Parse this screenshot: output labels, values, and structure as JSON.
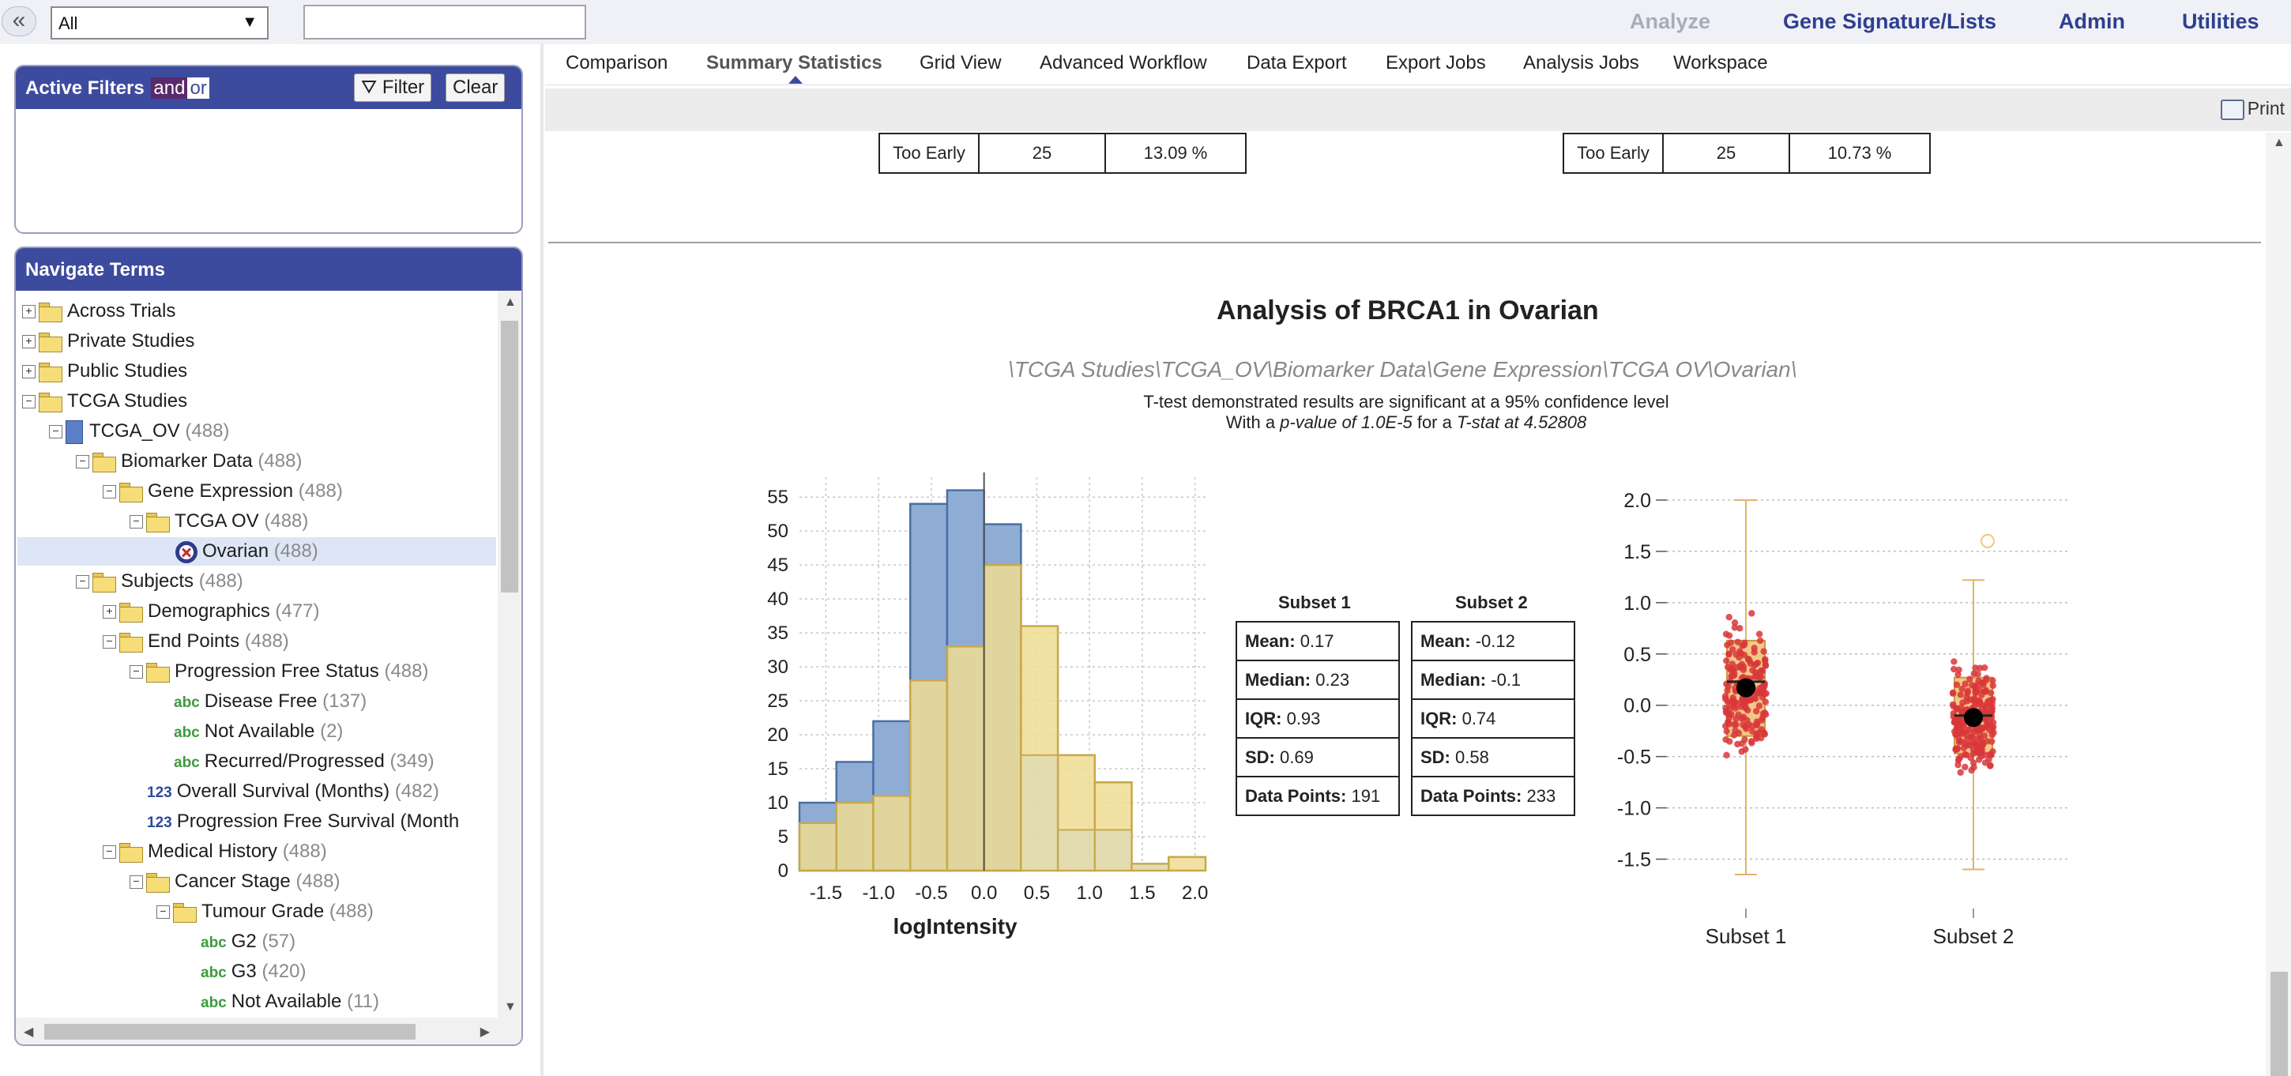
{
  "topbar": {
    "collapse": "«",
    "search_select": "All",
    "search_placeholder": "",
    "menu": [
      "Analyze",
      "Gene Signature/Lists",
      "Admin",
      "Utilities"
    ]
  },
  "filters": {
    "title": "Active Filters",
    "and": "and",
    "or": "or",
    "filter_btn": "Filter",
    "clear_btn": "Clear"
  },
  "navigate": {
    "title": "Navigate Terms",
    "items": [
      {
        "label": "Across Trials",
        "count": ""
      },
      {
        "label": "Private Studies",
        "count": ""
      },
      {
        "label": "Public Studies",
        "count": ""
      },
      {
        "label": "TCGA Studies",
        "count": ""
      },
      {
        "label": "TCGA_OV",
        "count": "(488)"
      },
      {
        "label": "Biomarker Data",
        "count": "(488)"
      },
      {
        "label": "Gene Expression",
        "count": "(488)"
      },
      {
        "label": "TCGA OV",
        "count": "(488)"
      },
      {
        "label": "Ovarian",
        "count": "(488)"
      },
      {
        "label": "Subjects",
        "count": "(488)"
      },
      {
        "label": "Demographics",
        "count": "(477)"
      },
      {
        "label": "End Points",
        "count": "(488)"
      },
      {
        "label": "Progression Free Status",
        "count": "(488)"
      },
      {
        "label": "Disease Free",
        "count": "(137)"
      },
      {
        "label": "Not Available",
        "count": "(2)"
      },
      {
        "label": "Recurred/Progressed",
        "count": "(349)"
      },
      {
        "label": "Overall Survival (Months)",
        "count": "(482)"
      },
      {
        "label": "Progression Free Survival (Month",
        "count": ""
      },
      {
        "label": "Medical History",
        "count": "(488)"
      },
      {
        "label": "Cancer Stage",
        "count": "(488)"
      },
      {
        "label": "Tumour Grade",
        "count": "(488)"
      },
      {
        "label": "G2",
        "count": "(57)"
      },
      {
        "label": "G3",
        "count": "(420)"
      },
      {
        "label": "Not Available",
        "count": "(11)"
      }
    ],
    "type_abc": "abc",
    "type_num": "123"
  },
  "tabs": [
    "Comparison",
    "Summary Statistics",
    "Grid View",
    "Advanced Workflow",
    "Data Export",
    "Export Jobs",
    "Analysis Jobs",
    "Workspace"
  ],
  "toolbar": {
    "print": "Print"
  },
  "prev_tables": [
    {
      "label": "Too Early",
      "count": "25",
      "pct": "13.09 %"
    },
    {
      "label": "Too Early",
      "count": "25",
      "pct": "10.73 %"
    }
  ],
  "analysis": {
    "title": "Analysis of BRCA1 in Ovarian",
    "path": "\\TCGA Studies\\TCGA_OV\\Biomarker Data\\Gene Expression\\TCGA OV\\Ovarian\\",
    "note1": "T-test demonstrated results are significant at a 95% confidence level",
    "note2_prefix": "With a ",
    "note2_pvalue": "p-value of 1.0E-5",
    "note2_mid": " for a ",
    "note2_tstat": "T-stat at 4.52808"
  },
  "stats": {
    "subset1": {
      "header": "Subset 1",
      "rows": [
        {
          "label": "Mean:",
          "value": "0.17"
        },
        {
          "label": "Median:",
          "value": "0.23"
        },
        {
          "label": "IQR:",
          "value": "0.93"
        },
        {
          "label": "SD:",
          "value": "0.69"
        },
        {
          "label": "Data Points:",
          "value": "191"
        }
      ]
    },
    "subset2": {
      "header": "Subset 2",
      "rows": [
        {
          "label": "Mean:",
          "value": "-0.12"
        },
        {
          "label": "Median:",
          "value": "-0.1"
        },
        {
          "label": "IQR:",
          "value": "0.74"
        },
        {
          "label": "SD:",
          "value": "0.58"
        },
        {
          "label": "Data Points:",
          "value": "233"
        }
      ]
    }
  },
  "colors": {
    "accent": "#3d4b9e",
    "hist_blue": "#8fadd4",
    "hist_blue_edge": "#4a6ea6",
    "hist_yellow": "#efdc93",
    "hist_yellow_edge": "#c9a84a",
    "box_fill": "#f3c888",
    "jitter": "#d8373a"
  },
  "chart_data": [
    {
      "type": "bar",
      "subtype": "overlaid-histogram",
      "xlabel": "logIntensity",
      "ylabel": "",
      "xlim": [
        -1.75,
        2.1
      ],
      "ylim": [
        0,
        57
      ],
      "xticks": [
        "-1.5",
        "-1.0",
        "-0.5",
        "0.0",
        "0.5",
        "1.0",
        "1.5",
        "2.0"
      ],
      "yticks": [
        "0",
        "5",
        "10",
        "15",
        "20",
        "25",
        "30",
        "35",
        "40",
        "45",
        "50",
        "55"
      ],
      "bin_edges": [
        -1.75,
        -1.4,
        -1.05,
        -0.7,
        -0.35,
        0.0,
        0.35,
        0.7,
        1.05,
        1.4,
        1.75,
        2.1
      ],
      "series": [
        {
          "values": [
            10,
            16,
            22,
            54,
            56,
            51,
            0,
            0,
            0,
            0,
            0
          ]
        },
        {
          "values": [
            7,
            10,
            11,
            28,
            33,
            45,
            36,
            17,
            13,
            1,
            2
          ]
        }
      ],
      "series_extra_bins": [
        {
          "values": [
            0,
            0,
            0,
            0,
            0,
            0,
            17,
            6,
            6,
            1,
            0
          ]
        }
      ],
      "grid": true
    },
    {
      "type": "box",
      "categories": [
        "Subset 1",
        "Subset 2"
      ],
      "ylim": [
        -1.75,
        2.1
      ],
      "yticks": [
        "2.0",
        "1.5",
        "1.0",
        "0.5",
        "0.0",
        "-0.5",
        "-1.0",
        "-1.5"
      ],
      "boxes": [
        {
          "q1": -0.3,
          "median": 0.23,
          "q3": 0.63,
          "mean": 0.17,
          "whisker_low": -1.65,
          "whisker_high": 2.0
        },
        {
          "q1": -0.47,
          "median": -0.1,
          "q3": 0.27,
          "mean": -0.12,
          "whisker_low": -1.6,
          "whisker_high": 1.22,
          "outlier_high": 1.6
        }
      ],
      "grid": true
    }
  ]
}
